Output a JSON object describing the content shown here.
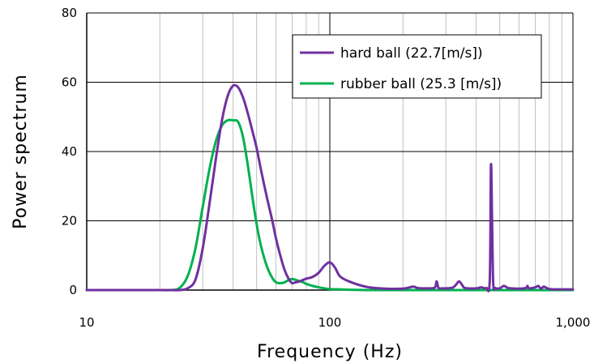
{
  "chart_data": {
    "type": "line",
    "title": "",
    "xlabel": "Frequency (Hz)",
    "ylabel": "Power spectrum",
    "xscale": "log",
    "xlim": [
      10,
      1000
    ],
    "ylim": [
      0,
      80
    ],
    "x_ticks": [
      10,
      100,
      1000
    ],
    "x_tick_labels": [
      "10",
      "100",
      "1,000"
    ],
    "y_ticks": [
      0,
      20,
      40,
      60,
      80
    ],
    "y_tick_labels": [
      "0",
      "20",
      "40",
      "60",
      "80"
    ],
    "grid": true,
    "legend_position": "top-right",
    "series": [
      {
        "name": "hard ball (22.7[m/s])",
        "color": "#7030a0",
        "x": [
          10,
          15,
          20,
          22,
          24,
          26,
          28,
          30,
          32,
          34,
          36,
          38,
          40,
          42,
          44,
          46,
          48,
          50,
          52,
          55,
          58,
          60,
          62,
          65,
          68,
          70,
          72,
          75,
          78,
          80,
          85,
          90,
          95,
          100,
          105,
          110,
          120,
          140,
          160,
          200,
          220,
          230,
          250,
          270,
          275,
          280,
          290,
          300,
          320,
          330,
          340,
          350,
          360,
          400,
          420,
          440,
          455,
          460,
          465,
          470,
          480,
          500,
          520,
          540,
          560,
          600,
          640,
          650,
          660,
          700,
          720,
          740,
          760,
          800,
          900,
          1000
        ],
        "y": [
          0,
          0,
          0,
          0,
          0,
          0.5,
          3,
          12,
          25,
          38,
          49,
          56,
          59,
          58.5,
          55.5,
          51,
          46,
          41,
          35,
          27,
          20,
          15,
          11,
          6,
          3,
          2,
          2.2,
          2.5,
          3,
          3.3,
          3.8,
          5,
          7,
          8,
          6.5,
          4,
          2.5,
          1,
          0.5,
          0.4,
          1,
          0.6,
          0.5,
          0.7,
          2.5,
          0.6,
          0.5,
          0.5,
          0.7,
          1.5,
          2.5,
          1.5,
          0.6,
          0.5,
          0.8,
          0.6,
          3,
          36,
          20,
          2,
          0.6,
          0.5,
          1.2,
          0.6,
          0.5,
          0.4,
          0.6,
          1.2,
          0.5,
          0.8,
          1.2,
          0.4,
          1,
          0.3,
          0.2,
          0.2
        ]
      },
      {
        "name": "rubber ball (25.3 [m/s])",
        "color": "#00b050",
        "x": [
          10,
          15,
          20,
          22,
          24,
          26,
          28,
          30,
          32,
          34,
          36,
          38,
          40,
          42,
          44,
          46,
          48,
          50,
          52,
          55,
          58,
          60,
          62,
          65,
          68,
          70,
          72,
          75,
          78,
          80,
          85,
          90,
          95,
          100,
          110,
          120,
          150,
          200,
          300,
          500,
          1000
        ],
        "y": [
          0,
          0,
          0,
          0,
          0.5,
          4,
          12,
          24,
          35,
          43,
          47.5,
          49,
          49,
          48.5,
          44,
          36,
          27,
          19,
          13,
          7,
          3.5,
          2.3,
          2,
          2.2,
          3,
          3.2,
          3,
          2.6,
          2.2,
          1.8,
          1.2,
          0.8,
          0.5,
          0.3,
          0.2,
          0.1,
          0,
          0,
          0,
          0,
          0
        ]
      }
    ]
  }
}
